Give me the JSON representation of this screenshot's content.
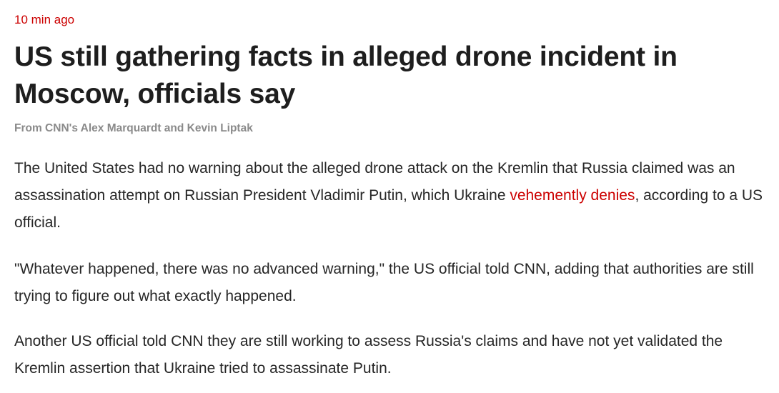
{
  "article": {
    "timestamp": "10 min ago",
    "title": "US still gathering facts in alleged drone incident in Moscow, officials say",
    "byline": "From CNN's Alex Marquardt and Kevin Liptak",
    "paragraphs": [
      {
        "before": "The United States had no warning about the alleged drone attack on the Kremlin that Russia claimed was an assassination attempt on Russian President Vladimir Putin, which Ukraine ",
        "link": "vehemently denies",
        "after": ", according to a US official."
      },
      {
        "text": "\"Whatever happened, there was no advanced warning,\" the US official told CNN, adding that authorities are still trying to figure out what exactly happened."
      },
      {
        "text": "Another US official told CNN they are still working to assess Russia's claims and have not yet validated the Kremlin assertion that Ukraine tried to assassinate Putin."
      }
    ]
  },
  "colors": {
    "accent": "#cc0000",
    "text": "#262626",
    "byline": "#8a8a8a"
  }
}
